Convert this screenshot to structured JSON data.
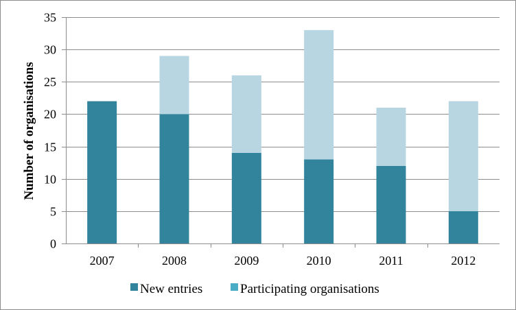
{
  "chart_data": {
    "type": "bar",
    "stacked": true,
    "categories": [
      "2007",
      "2008",
      "2009",
      "2010",
      "2011",
      "2012"
    ],
    "series": [
      {
        "name": "New entries",
        "values": [
          22,
          20,
          14,
          13,
          12,
          5
        ],
        "color": "#31849b"
      },
      {
        "name": "Participating organisations",
        "values": [
          0,
          9,
          12,
          20,
          9,
          17
        ],
        "color": "#b7d6e1"
      }
    ],
    "ylabel": "Number of organisations",
    "xlabel": "",
    "ylim": [
      0,
      35
    ],
    "yticks": [
      "0",
      "5",
      "10",
      "15",
      "20",
      "25",
      "30",
      "35"
    ],
    "grid": true,
    "legend_position": "bottom"
  },
  "legend": {
    "new_entries": "New entries",
    "participating": "Participating organisations",
    "new_entries_swatch": "#31849b",
    "participating_swatch": "#4bacc6"
  }
}
